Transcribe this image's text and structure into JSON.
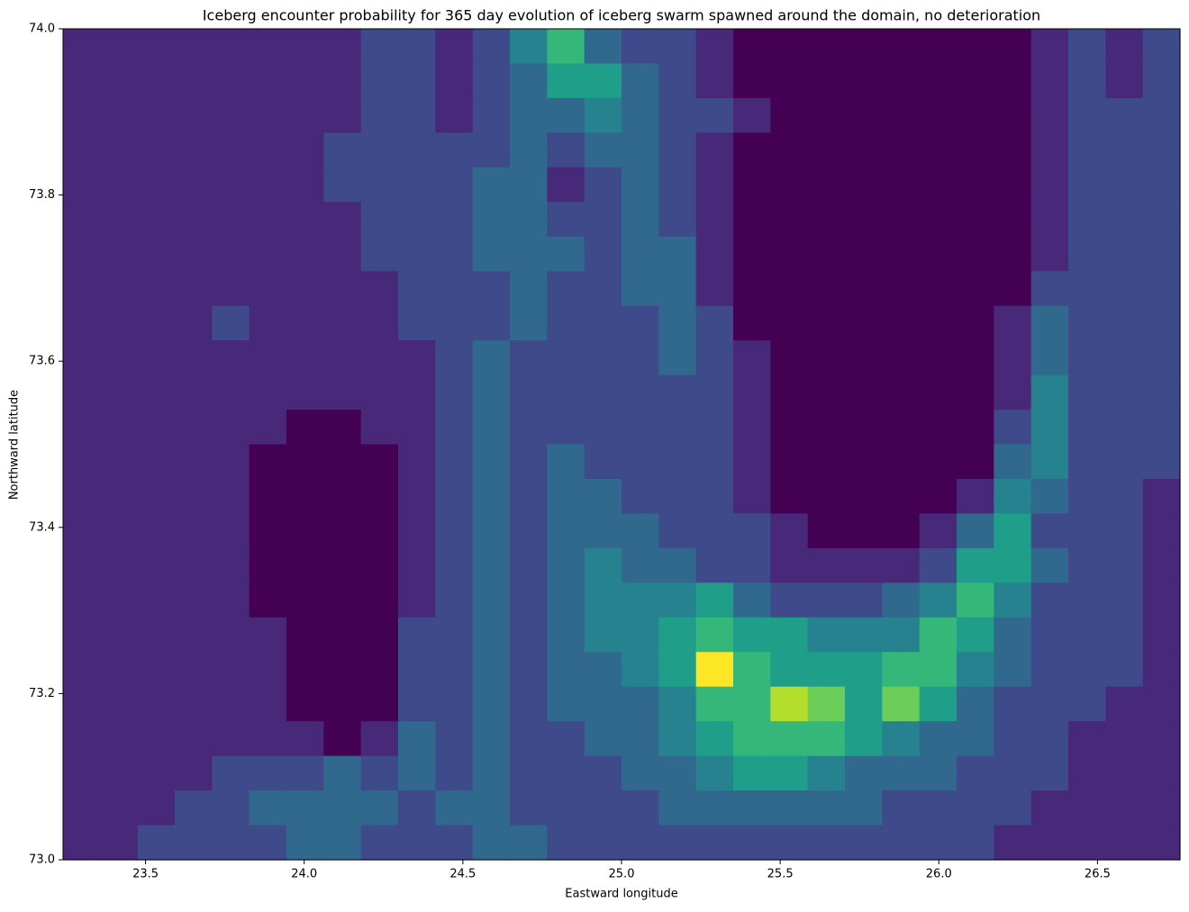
{
  "chart_data": {
    "type": "heatmap",
    "title": "Iceberg encounter probability for 365 day evolution of iceberg swarm spawned around the domain, no deterioration",
    "x_label": "Eastward longitude",
    "y_label": "Northward latitude",
    "colormap": "viridis",
    "clim": [
      0,
      9
    ],
    "xlim": [
      23.24,
      26.76
    ],
    "ylim": [
      73,
      74
    ],
    "xticks": [
      23.5,
      {
        "value": 24,
        "label": "24.0"
      },
      24.5,
      {
        "value": 25,
        "label": "25.0"
      },
      25.5,
      {
        "value": 26,
        "label": "26.0"
      },
      26.5
    ],
    "yticks": [
      {
        "value": 73,
        "label": "73.0"
      },
      73.2,
      73.4,
      73.6,
      73.8,
      {
        "value": 74,
        "label": "74.0"
      }
    ],
    "values": [
      [
        1,
        1,
        1,
        1,
        1,
        1,
        1,
        1,
        2,
        2,
        1,
        2,
        4,
        6,
        3,
        2,
        2,
        1,
        0,
        0,
        0,
        0,
        0,
        0,
        0,
        0,
        1,
        2,
        1,
        2
      ],
      [
        1,
        1,
        1,
        1,
        1,
        1,
        1,
        1,
        2,
        2,
        1,
        2,
        3,
        5,
        5,
        3,
        2,
        1,
        0,
        0,
        0,
        0,
        0,
        0,
        0,
        0,
        1,
        2,
        1,
        2
      ],
      [
        1,
        1,
        1,
        1,
        1,
        1,
        1,
        1,
        2,
        2,
        1,
        2,
        3,
        3,
        4,
        3,
        2,
        2,
        1,
        0,
        0,
        0,
        0,
        0,
        0,
        0,
        1,
        2,
        2,
        2
      ],
      [
        1,
        1,
        1,
        1,
        1,
        1,
        1,
        2,
        2,
        2,
        2,
        2,
        3,
        2,
        3,
        3,
        2,
        1,
        0,
        0,
        0,
        0,
        0,
        0,
        0,
        0,
        1,
        2,
        2,
        2
      ],
      [
        1,
        1,
        1,
        1,
        1,
        1,
        1,
        2,
        2,
        2,
        2,
        3,
        3,
        1,
        2,
        3,
        2,
        1,
        0,
        0,
        0,
        0,
        0,
        0,
        0,
        0,
        1,
        2,
        2,
        2
      ],
      [
        1,
        1,
        1,
        1,
        1,
        1,
        1,
        1,
        2,
        2,
        2,
        3,
        3,
        2,
        2,
        3,
        2,
        1,
        0,
        0,
        0,
        0,
        0,
        0,
        0,
        0,
        1,
        2,
        2,
        2
      ],
      [
        1,
        1,
        1,
        1,
        1,
        1,
        1,
        1,
        2,
        2,
        2,
        3,
        3,
        3,
        2,
        3,
        3,
        1,
        0,
        0,
        0,
        0,
        0,
        0,
        0,
        0,
        1,
        2,
        2,
        2
      ],
      [
        1,
        1,
        1,
        1,
        1,
        1,
        1,
        1,
        1,
        2,
        2,
        2,
        3,
        2,
        2,
        3,
        3,
        1,
        0,
        0,
        0,
        0,
        0,
        0,
        0,
        0,
        2,
        2,
        2,
        2
      ],
      [
        1,
        1,
        1,
        1,
        2,
        1,
        1,
        1,
        1,
        2,
        2,
        2,
        3,
        2,
        2,
        2,
        3,
        2,
        0,
        0,
        0,
        0,
        0,
        0,
        0,
        1,
        3,
        2,
        2,
        2
      ],
      [
        1,
        1,
        1,
        1,
        1,
        1,
        1,
        1,
        1,
        1,
        2,
        3,
        2,
        2,
        2,
        2,
        3,
        2,
        1,
        0,
        0,
        0,
        0,
        0,
        0,
        1,
        3,
        2,
        2,
        2
      ],
      [
        1,
        1,
        1,
        1,
        1,
        1,
        1,
        1,
        1,
        1,
        2,
        3,
        2,
        2,
        2,
        2,
        2,
        2,
        1,
        0,
        0,
        0,
        0,
        0,
        0,
        1,
        4,
        2,
        2,
        2
      ],
      [
        1,
        1,
        1,
        1,
        1,
        1,
        0,
        0,
        1,
        1,
        2,
        3,
        2,
        2,
        2,
        2,
        2,
        2,
        1,
        0,
        0,
        0,
        0,
        0,
        0,
        2,
        4,
        2,
        2,
        2
      ],
      [
        1,
        1,
        1,
        1,
        1,
        0,
        0,
        0,
        0,
        1,
        2,
        3,
        2,
        3,
        2,
        2,
        2,
        2,
        1,
        0,
        0,
        0,
        0,
        0,
        0,
        3,
        4,
        2,
        2,
        2
      ],
      [
        1,
        1,
        1,
        1,
        1,
        0,
        0,
        0,
        0,
        1,
        2,
        3,
        2,
        3,
        3,
        2,
        2,
        2,
        1,
        0,
        0,
        0,
        0,
        0,
        1,
        4,
        3,
        2,
        2,
        1
      ],
      [
        1,
        1,
        1,
        1,
        1,
        0,
        0,
        0,
        0,
        1,
        2,
        3,
        2,
        3,
        3,
        3,
        2,
        2,
        2,
        1,
        0,
        0,
        0,
        1,
        3,
        5,
        2,
        2,
        2,
        1
      ],
      [
        1,
        1,
        1,
        1,
        1,
        0,
        0,
        0,
        0,
        1,
        2,
        3,
        2,
        3,
        4,
        3,
        3,
        2,
        2,
        1,
        1,
        1,
        1,
        2,
        5,
        5,
        3,
        2,
        2,
        1
      ],
      [
        1,
        1,
        1,
        1,
        1,
        0,
        0,
        0,
        0,
        1,
        2,
        3,
        2,
        3,
        4,
        4,
        4,
        5,
        3,
        2,
        2,
        2,
        3,
        4,
        6,
        4,
        2,
        2,
        2,
        1
      ],
      [
        1,
        1,
        1,
        1,
        1,
        1,
        0,
        0,
        0,
        2,
        2,
        3,
        2,
        3,
        4,
        4,
        5,
        6,
        5,
        5,
        4,
        4,
        4,
        6,
        5,
        3,
        2,
        2,
        2,
        1
      ],
      [
        1,
        1,
        1,
        1,
        1,
        1,
        0,
        0,
        0,
        2,
        2,
        3,
        2,
        3,
        3,
        4,
        5,
        9,
        6,
        5,
        5,
        5,
        6,
        6,
        4,
        3,
        2,
        2,
        2,
        1
      ],
      [
        1,
        1,
        1,
        1,
        1,
        1,
        0,
        0,
        0,
        2,
        2,
        3,
        2,
        3,
        3,
        3,
        4,
        6,
        6,
        8,
        7,
        5,
        7,
        5,
        3,
        2,
        2,
        2,
        1,
        1
      ],
      [
        1,
        1,
        1,
        1,
        1,
        1,
        1,
        0,
        1,
        3,
        2,
        3,
        2,
        2,
        3,
        3,
        4,
        5,
        6,
        6,
        6,
        5,
        4,
        3,
        3,
        2,
        2,
        1,
        1,
        1
      ],
      [
        1,
        1,
        1,
        1,
        2,
        2,
        2,
        3,
        2,
        3,
        2,
        3,
        2,
        2,
        2,
        3,
        3,
        4,
        5,
        5,
        4,
        3,
        3,
        3,
        2,
        2,
        2,
        1,
        1,
        1
      ],
      [
        1,
        1,
        1,
        2,
        2,
        3,
        3,
        3,
        3,
        2,
        3,
        3,
        2,
        2,
        2,
        2,
        3,
        3,
        3,
        3,
        3,
        3,
        2,
        2,
        2,
        2,
        1,
        1,
        1,
        1
      ],
      [
        1,
        1,
        2,
        2,
        2,
        2,
        3,
        3,
        2,
        2,
        2,
        3,
        3,
        2,
        2,
        2,
        2,
        2,
        2,
        2,
        2,
        2,
        2,
        2,
        2,
        1,
        1,
        1,
        1,
        1
      ]
    ]
  }
}
